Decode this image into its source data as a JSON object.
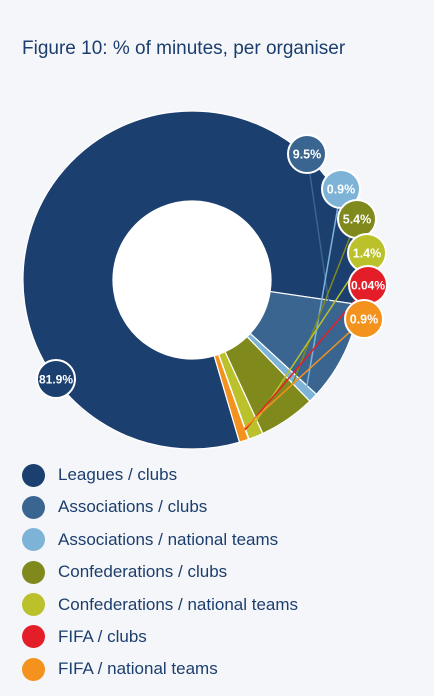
{
  "title": "Figure 10: % of minutes, per organiser",
  "chart_data": {
    "type": "donut",
    "title": "Figure 10: % of minutes, per organiser",
    "unit": "%",
    "legend_position": "bottom",
    "slices": [
      {
        "label": "Leagues / clubs",
        "value": 81.9,
        "display": "81.9%",
        "color": "#1b3f6f"
      },
      {
        "label": "Associations / clubs",
        "value": 9.5,
        "display": "9.5%",
        "color": "#3a6590"
      },
      {
        "label": "Associations / national teams",
        "value": 0.9,
        "display": "0.9%",
        "color": "#7eb3d8"
      },
      {
        "label": "Confederations / clubs",
        "value": 5.4,
        "display": "5.4%",
        "color": "#7f891c"
      },
      {
        "label": "Confederations / national teams",
        "value": 1.4,
        "display": "1.4%",
        "color": "#bac12a"
      },
      {
        "label": "FIFA / clubs",
        "value": 0.04,
        "display": "0.04%",
        "color": "#e41e28"
      },
      {
        "label": "FIFA / national teams",
        "value": 0.9,
        "display": "0.9%",
        "color": "#f4921e"
      }
    ]
  }
}
